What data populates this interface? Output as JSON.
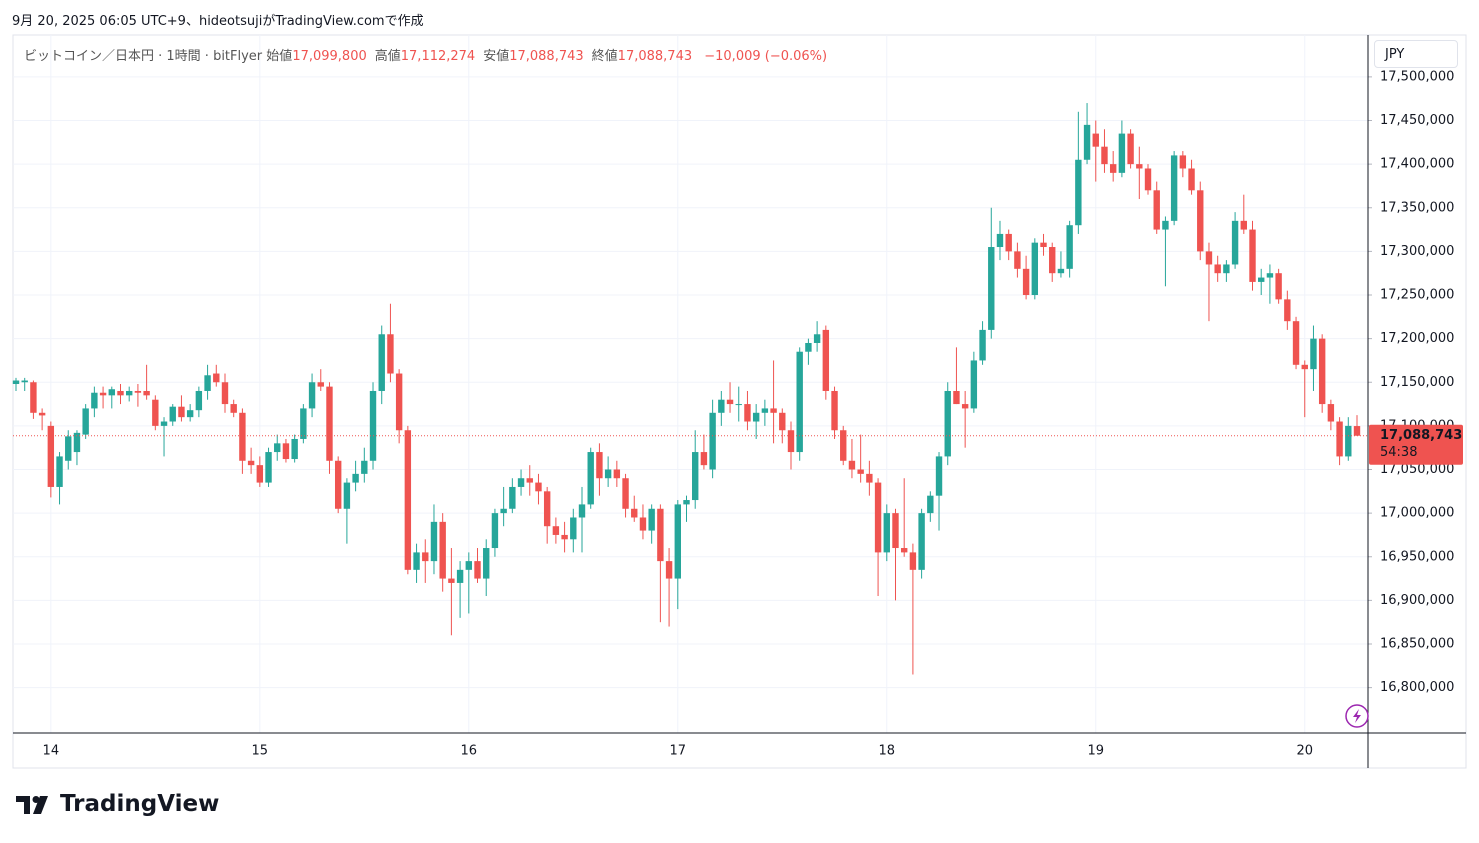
{
  "caption": "9月 20, 2025 06:05 UTC+9、hideotsujiがTradingView.comで作成",
  "brand": "TradingView",
  "chart_data": {
    "type": "candlestick",
    "currency": "JPY",
    "header": {
      "symbol": "ビットコイン／日本円 · 1時間 · bitFlyer",
      "fields": [
        {
          "label": "始値",
          "value": "17,099,800"
        },
        {
          "label": "高値",
          "value": "17,112,274"
        },
        {
          "label": "安値",
          "value": "17,088,743"
        },
        {
          "label": "終値",
          "value": "17,088,743"
        }
      ],
      "change": "−10,009 (−0.06%)"
    },
    "price_label": "17,088,743",
    "countdown": "54:38",
    "up_color": "#26a69a",
    "down_color": "#ef5350",
    "grid": true,
    "ylim": [
      16748000,
      17548000
    ],
    "yticks": [
      {
        "value": 16800000,
        "label": "16,800,000"
      },
      {
        "value": 16850000,
        "label": "16,850,000"
      },
      {
        "value": 16900000,
        "label": "16,900,000"
      },
      {
        "value": 16950000,
        "label": "16,950,000"
      },
      {
        "value": 17000000,
        "label": "17,000,000"
      },
      {
        "value": 17050000,
        "label": "17,050,000"
      },
      {
        "value": 17100000,
        "label": "17,100,000"
      },
      {
        "value": 17150000,
        "label": "17,150,000"
      },
      {
        "value": 17200000,
        "label": "17,200,000"
      },
      {
        "value": 17250000,
        "label": "17,250,000"
      },
      {
        "value": 17300000,
        "label": "17,300,000"
      },
      {
        "value": 17350000,
        "label": "17,350,000"
      },
      {
        "value": 17400000,
        "label": "17,400,000"
      },
      {
        "value": 17450000,
        "label": "17,450,000"
      },
      {
        "value": 17500000,
        "label": "17,500,000"
      }
    ],
    "categories": [
      null,
      null,
      null,
      null,
      "14",
      null,
      null,
      null,
      null,
      null,
      null,
      null,
      null,
      null,
      null,
      null,
      null,
      null,
      null,
      null,
      null,
      null,
      null,
      null,
      null,
      null,
      null,
      null,
      "15",
      null,
      null,
      null,
      null,
      null,
      null,
      null,
      null,
      null,
      null,
      null,
      null,
      null,
      null,
      null,
      null,
      null,
      null,
      null,
      null,
      null,
      null,
      null,
      "16",
      null,
      null,
      null,
      null,
      null,
      null,
      null,
      null,
      null,
      null,
      null,
      null,
      null,
      null,
      null,
      null,
      null,
      null,
      null,
      null,
      null,
      null,
      null,
      "17",
      null,
      null,
      null,
      null,
      null,
      null,
      null,
      null,
      null,
      null,
      null,
      null,
      null,
      null,
      null,
      null,
      null,
      null,
      null,
      null,
      null,
      null,
      null,
      "18",
      null,
      null,
      null,
      null,
      null,
      null,
      null,
      null,
      null,
      null,
      null,
      null,
      null,
      null,
      null,
      null,
      null,
      null,
      null,
      null,
      null,
      null,
      null,
      "19",
      null,
      null,
      null,
      null,
      null,
      null,
      null,
      null,
      null,
      null,
      null,
      null,
      null,
      null,
      null,
      null,
      null,
      null,
      null,
      null,
      null,
      null,
      null,
      "20",
      null,
      null,
      null,
      null,
      null,
      null
    ],
    "open": [
      17148000,
      17150000,
      17150000,
      17115000,
      17100000,
      17030000,
      17060000,
      17070000,
      17090000,
      17120000,
      17138000,
      17135000,
      17140000,
      17135000,
      17140000,
      17140000,
      17130000,
      17100000,
      17105000,
      17122000,
      17110000,
      17118000,
      17140000,
      17160000,
      17150000,
      17125000,
      17115000,
      17060000,
      17055000,
      17035000,
      17070000,
      17080000,
      17062000,
      17085000,
      17120000,
      17150000,
      17145000,
      17060000,
      17005000,
      17035000,
      17045000,
      17060000,
      17140000,
      17205000,
      17160000,
      17095000,
      16935000,
      16955000,
      16945000,
      16990000,
      16925000,
      16920000,
      16935000,
      16945000,
      16925000,
      16960000,
      17000000,
      17005000,
      17030000,
      17040000,
      17035000,
      17025000,
      16985000,
      16975000,
      16970000,
      16995000,
      17010000,
      17070000,
      17040000,
      17050000,
      17040000,
      17005000,
      16995000,
      16980000,
      17005000,
      16945000,
      16925000,
      17010000,
      17015000,
      17070000,
      17050000,
      17115000,
      17130000,
      17125000,
      17125000,
      17105000,
      17115000,
      17120000,
      17115000,
      17095000,
      17070000,
      17185000,
      17195000,
      17210000,
      17140000,
      17095000,
      17060000,
      17050000,
      17045000,
      17035000,
      16955000,
      17000000,
      16960000,
      16955000,
      16935000,
      17000000,
      17020000,
      17065000,
      17140000,
      17125000,
      17120000,
      17175000,
      17210000,
      17305000,
      17320000,
      17300000,
      17280000,
      17250000,
      17310000,
      17305000,
      17275000,
      17280000,
      17330000,
      17405000,
      17435000,
      17420000,
      17400000,
      17390000,
      17435000,
      17400000,
      17395000,
      17370000,
      17325000,
      17335000,
      17410000,
      17395000,
      17370000,
      17300000,
      17285000,
      17275000,
      17285000,
      17335000,
      17325000,
      17265000,
      17270000,
      17275000,
      17245000,
      17220000,
      17170000,
      17165000,
      17200000,
      17125000,
      17105000,
      17065000,
      17099800
    ],
    "high": [
      17155000,
      17155000,
      17152000,
      17120000,
      17105000,
      17070000,
      17095000,
      17095000,
      17125000,
      17145000,
      17145000,
      17145000,
      17148000,
      17145000,
      17148000,
      17170000,
      17135000,
      17110000,
      17125000,
      17135000,
      17125000,
      17145000,
      17170000,
      17170000,
      17160000,
      17130000,
      17120000,
      17075000,
      17065000,
      17075000,
      17090000,
      17085000,
      17090000,
      17125000,
      17160000,
      17165000,
      17150000,
      17065000,
      17040000,
      17060000,
      17075000,
      17150000,
      17215000,
      17240000,
      17165000,
      17100000,
      16965000,
      16970000,
      17010000,
      17000000,
      16960000,
      16945000,
      16955000,
      16960000,
      16970000,
      17005000,
      17030000,
      17040000,
      17050000,
      17055000,
      17045000,
      17030000,
      16995000,
      16990000,
      17005000,
      17030000,
      17075000,
      17080000,
      17065000,
      17060000,
      17045000,
      17020000,
      17010000,
      17010000,
      17010000,
      16960000,
      17015000,
      17020000,
      17095000,
      17090000,
      17130000,
      17140000,
      17150000,
      17145000,
      17140000,
      17125000,
      17130000,
      17175000,
      17120000,
      17105000,
      17190000,
      17200000,
      17220000,
      17215000,
      17145000,
      17100000,
      17085000,
      17090000,
      17060000,
      17040000,
      17010000,
      17005000,
      17040000,
      16965000,
      17005000,
      17025000,
      17070000,
      17150000,
      17190000,
      17140000,
      17185000,
      17220000,
      17350000,
      17335000,
      17325000,
      17310000,
      17295000,
      17315000,
      17320000,
      17310000,
      17300000,
      17335000,
      17460000,
      17470000,
      17450000,
      17440000,
      17415000,
      17450000,
      17440000,
      17420000,
      17400000,
      17380000,
      17340000,
      17415000,
      17415000,
      17405000,
      17380000,
      17310000,
      17295000,
      17290000,
      17345000,
      17365000,
      17335000,
      17280000,
      17285000,
      17280000,
      17255000,
      17225000,
      17175000,
      17215000,
      17205000,
      17130000,
      17110000,
      17110000,
      17112274
    ],
    "low": [
      17140000,
      17140000,
      17108000,
      17095000,
      17018000,
      17010000,
      17050000,
      17055000,
      17085000,
      17110000,
      17120000,
      17120000,
      17125000,
      17128000,
      17122000,
      17130000,
      17095000,
      17065000,
      17100000,
      17105000,
      17105000,
      17110000,
      17130000,
      17145000,
      17115000,
      17110000,
      17045000,
      17045000,
      17030000,
      17030000,
      17060000,
      17058000,
      17058000,
      17080000,
      17110000,
      17140000,
      17045000,
      17000000,
      16965000,
      17025000,
      17035000,
      17050000,
      17125000,
      17150000,
      17080000,
      16930000,
      16920000,
      16920000,
      16930000,
      16910000,
      16860000,
      16880000,
      16885000,
      16920000,
      16905000,
      16950000,
      16985000,
      17000000,
      17020000,
      17020000,
      17010000,
      16965000,
      16965000,
      16955000,
      16955000,
      16955000,
      17005000,
      17020000,
      17030000,
      17030000,
      16995000,
      16990000,
      16970000,
      16965000,
      16875000,
      16870000,
      16890000,
      16990000,
      17005000,
      17050000,
      17040000,
      17100000,
      17115000,
      17105000,
      17095000,
      17085000,
      17100000,
      17080000,
      17080000,
      17050000,
      17060000,
      17170000,
      17185000,
      17130000,
      17085000,
      17055000,
      17040000,
      17035000,
      17020000,
      16905000,
      16945000,
      16900000,
      16950000,
      16815000,
      16925000,
      16990000,
      16980000,
      17055000,
      17125000,
      17075000,
      17115000,
      17170000,
      17200000,
      17290000,
      17290000,
      17270000,
      17245000,
      17245000,
      17295000,
      17265000,
      17270000,
      17270000,
      17320000,
      17400000,
      17380000,
      17390000,
      17380000,
      17385000,
      17395000,
      17360000,
      17365000,
      17320000,
      17260000,
      17330000,
      17385000,
      17365000,
      17290000,
      17220000,
      17265000,
      17265000,
      17280000,
      17320000,
      17255000,
      17250000,
      17240000,
      17240000,
      17210000,
      17165000,
      17110000,
      17140000,
      17115000,
      17095000,
      17055000,
      17060000,
      17088743
    ],
    "close": [
      17152000,
      17152000,
      17115000,
      17112000,
      17030000,
      17065000,
      17088000,
      17092000,
      17120000,
      17138000,
      17135000,
      17142000,
      17135000,
      17140000,
      17138000,
      17135000,
      17100000,
      17105000,
      17122000,
      17110000,
      17118000,
      17140000,
      17158000,
      17150000,
      17125000,
      17115000,
      17060000,
      17055000,
      17035000,
      17070000,
      17080000,
      17062000,
      17085000,
      17120000,
      17150000,
      17145000,
      17060000,
      17005000,
      17035000,
      17045000,
      17060000,
      17140000,
      17205000,
      17160000,
      17095000,
      16935000,
      16955000,
      16945000,
      16990000,
      16925000,
      16920000,
      16935000,
      16945000,
      16925000,
      16960000,
      17000000,
      17005000,
      17030000,
      17040000,
      17035000,
      17025000,
      16985000,
      16975000,
      16970000,
      16995000,
      17010000,
      17070000,
      17040000,
      17050000,
      17040000,
      17005000,
      16995000,
      16980000,
      17005000,
      16945000,
      16925000,
      17010000,
      17015000,
      17070000,
      17055000,
      17115000,
      17130000,
      17125000,
      17125000,
      17105000,
      17115000,
      17120000,
      17115000,
      17095000,
      17070000,
      17185000,
      17195000,
      17205000,
      17140000,
      17095000,
      17060000,
      17050000,
      17045000,
      17035000,
      16955000,
      17000000,
      16960000,
      16955000,
      16935000,
      17000000,
      17020000,
      17065000,
      17140000,
      17125000,
      17120000,
      17175000,
      17210000,
      17305000,
      17320000,
      17300000,
      17280000,
      17250000,
      17310000,
      17305000,
      17275000,
      17280000,
      17330000,
      17405000,
      17445000,
      17420000,
      17400000,
      17390000,
      17435000,
      17400000,
      17395000,
      17370000,
      17325000,
      17335000,
      17410000,
      17395000,
      17370000,
      17300000,
      17285000,
      17275000,
      17285000,
      17335000,
      17325000,
      17265000,
      17270000,
      17275000,
      17245000,
      17220000,
      17170000,
      17165000,
      17200000,
      17125000,
      17105000,
      17065000,
      17100000,
      17088743
    ]
  }
}
